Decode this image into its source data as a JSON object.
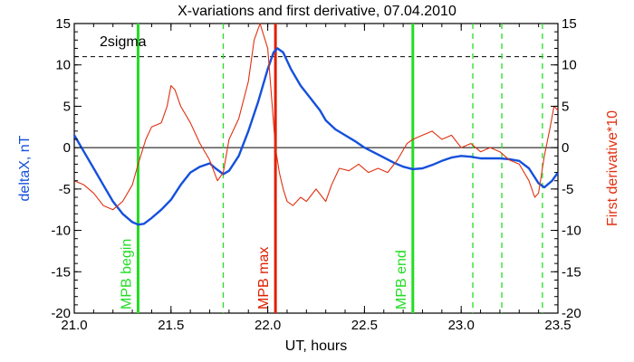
{
  "chart_data": {
    "type": "line",
    "title": "X-variations and first derivative, 07.04.2010",
    "xlabel": "UT, hours",
    "ylabel_left": "deltaX, nT",
    "ylabel_right": "First derivative*10",
    "xlim": [
      21.0,
      23.5
    ],
    "ylim": [
      -20,
      15
    ],
    "x_ticks": [
      "21.0",
      "21.5",
      "22.0",
      "22.5",
      "23.0",
      "23.5"
    ],
    "x_tick_values": [
      21.0,
      21.5,
      22.0,
      22.5,
      23.0,
      23.5
    ],
    "y_ticks": [
      "15",
      "10",
      "5",
      "0",
      "-5",
      "-10",
      "-15",
      "-20"
    ],
    "y_tick_values": [
      15,
      10,
      5,
      0,
      -5,
      -10,
      -15,
      -20
    ],
    "threshold": {
      "label": "2sigma",
      "value": 11
    },
    "zero_line": 0,
    "annotations": [
      {
        "label": "MPB begin",
        "x": 21.33,
        "color": "#22dd22",
        "style": "solid"
      },
      {
        "label": "MPB max",
        "x": 22.04,
        "color": "#e02000",
        "style": "solid"
      },
      {
        "label": "MPB end",
        "x": 22.75,
        "color": "#22dd22",
        "style": "solid"
      }
    ],
    "dashed_markers": [
      {
        "x": 21.77,
        "color": "#22dd22"
      },
      {
        "x": 23.06,
        "color": "#22dd22"
      },
      {
        "x": 23.21,
        "color": "#22dd22"
      },
      {
        "x": 23.42,
        "color": "#22dd22"
      }
    ],
    "series": [
      {
        "color": "#1550dd",
        "axis": "left",
        "x": [
          21.0,
          21.05,
          21.1,
          21.15,
          21.2,
          21.25,
          21.3,
          21.33,
          21.36,
          21.4,
          21.45,
          21.5,
          21.55,
          21.6,
          21.65,
          21.7,
          21.73,
          21.77,
          21.8,
          21.85,
          21.9,
          21.95,
          22.0,
          22.03,
          22.05,
          22.08,
          22.12,
          22.17,
          22.22,
          22.27,
          22.3,
          22.35,
          22.4,
          22.45,
          22.5,
          22.55,
          22.6,
          22.65,
          22.7,
          22.75,
          22.8,
          22.85,
          22.9,
          22.95,
          23.0,
          23.05,
          23.1,
          23.15,
          23.2,
          23.25,
          23.3,
          23.35,
          23.4,
          23.43,
          23.47,
          23.5
        ],
        "y": [
          1.5,
          -0.5,
          -2.5,
          -4.5,
          -6.5,
          -8.0,
          -9.0,
          -9.3,
          -9.2,
          -8.5,
          -7.5,
          -6.3,
          -4.5,
          -3.0,
          -2.3,
          -1.9,
          -2.5,
          -3.2,
          -2.8,
          -1.0,
          2.0,
          5.5,
          9.5,
          11.5,
          12.0,
          11.5,
          9.5,
          7.5,
          6.0,
          4.5,
          3.3,
          2.2,
          1.5,
          0.8,
          0.0,
          -0.6,
          -1.2,
          -1.8,
          -2.3,
          -2.6,
          -2.5,
          -2.1,
          -1.6,
          -1.2,
          -1.0,
          -1.1,
          -1.3,
          -1.3,
          -1.3,
          -1.4,
          -1.6,
          -2.5,
          -4.3,
          -4.8,
          -4.0,
          -3.0
        ]
      },
      {
        "color": "#e03010",
        "axis": "right",
        "x": [
          21.0,
          21.05,
          21.1,
          21.15,
          21.2,
          21.25,
          21.3,
          21.33,
          21.37,
          21.4,
          21.45,
          21.48,
          21.5,
          21.52,
          21.55,
          21.6,
          21.65,
          21.7,
          21.74,
          21.77,
          21.8,
          21.85,
          21.9,
          21.93,
          21.96,
          22.0,
          22.02,
          22.04,
          22.06,
          22.08,
          22.1,
          22.13,
          22.17,
          22.2,
          22.25,
          22.3,
          22.33,
          22.37,
          22.42,
          22.47,
          22.52,
          22.57,
          22.62,
          22.67,
          22.72,
          22.75,
          22.8,
          22.85,
          22.9,
          22.95,
          23.0,
          23.05,
          23.1,
          23.15,
          23.2,
          23.25,
          23.3,
          23.35,
          23.38,
          23.4,
          23.43,
          23.46,
          23.48,
          23.5
        ],
        "y": [
          -4.0,
          -4.5,
          -5.5,
          -7.0,
          -7.5,
          -6.5,
          -4.5,
          -2.0,
          1.0,
          2.5,
          3.0,
          5.0,
          7.5,
          7.0,
          5.0,
          3.0,
          0.5,
          -1.5,
          -4.0,
          -3.0,
          1.0,
          3.5,
          8.0,
          13.0,
          15.0,
          12.0,
          6.0,
          0.0,
          -3.0,
          -5.0,
          -6.5,
          -7.0,
          -6.0,
          -6.5,
          -5.0,
          -6.5,
          -4.5,
          -2.5,
          -2.8,
          -2.0,
          -3.0,
          -2.5,
          -3.0,
          -1.5,
          0.5,
          1.0,
          1.5,
          2.0,
          1.0,
          1.5,
          0.0,
          0.5,
          -0.5,
          0.0,
          -0.5,
          -1.5,
          -2.0,
          -4.0,
          -6.0,
          -5.5,
          -1.0,
          2.5,
          5.0,
          4.5
        ]
      }
    ]
  }
}
